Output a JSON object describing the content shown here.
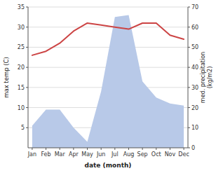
{
  "chart_data": {
    "type": "line",
    "categories": [
      "Jan",
      "Feb",
      "Mar",
      "Apr",
      "May",
      "Jun",
      "Jul",
      "Aug",
      "Sep",
      "Oct",
      "Nov",
      "Dec"
    ],
    "series": [
      {
        "type": "area",
        "axis": "y2",
        "color": "#b8c9e8",
        "values": [
          11,
          19,
          19,
          10,
          3,
          28,
          65,
          66,
          33,
          25,
          22,
          21
        ]
      },
      {
        "type": "line",
        "color": "#cc4444",
        "values": [
          23,
          24,
          26,
          29,
          31,
          30.5,
          30,
          29.5,
          31,
          31,
          28,
          27
        ]
      }
    ],
    "xlabel": "date (month)",
    "ylabel": "max temp (C)",
    "y2label": "med. precipitation\n(kg/m2)",
    "ylim": [
      0,
      35
    ],
    "yticks": [
      5,
      10,
      15,
      20,
      25,
      30,
      35
    ],
    "y2lim": [
      0,
      70
    ],
    "y2ticks": [
      0,
      10,
      20,
      30,
      40,
      50,
      60,
      70
    ],
    "grid": true
  }
}
